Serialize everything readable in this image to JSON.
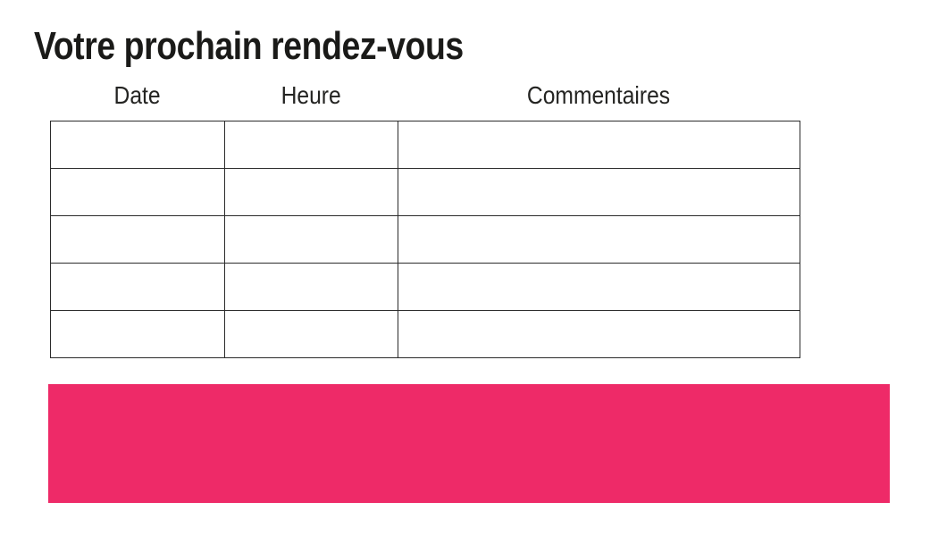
{
  "page": {
    "title": "Votre prochain rendez-vous",
    "background": "#FFFFFF"
  },
  "appointments_table": {
    "columns": [
      "Date",
      "Heure",
      "Commentaires"
    ],
    "rows": [
      [
        "",
        "",
        ""
      ],
      [
        "",
        "",
        ""
      ],
      [
        "",
        "",
        ""
      ],
      [
        "",
        "",
        ""
      ],
      [
        "",
        "",
        ""
      ]
    ]
  },
  "banner": {
    "color": "#EE2A68"
  },
  "colors": {
    "text": "#1C1C1A",
    "table_border": "#2B2B2B"
  }
}
